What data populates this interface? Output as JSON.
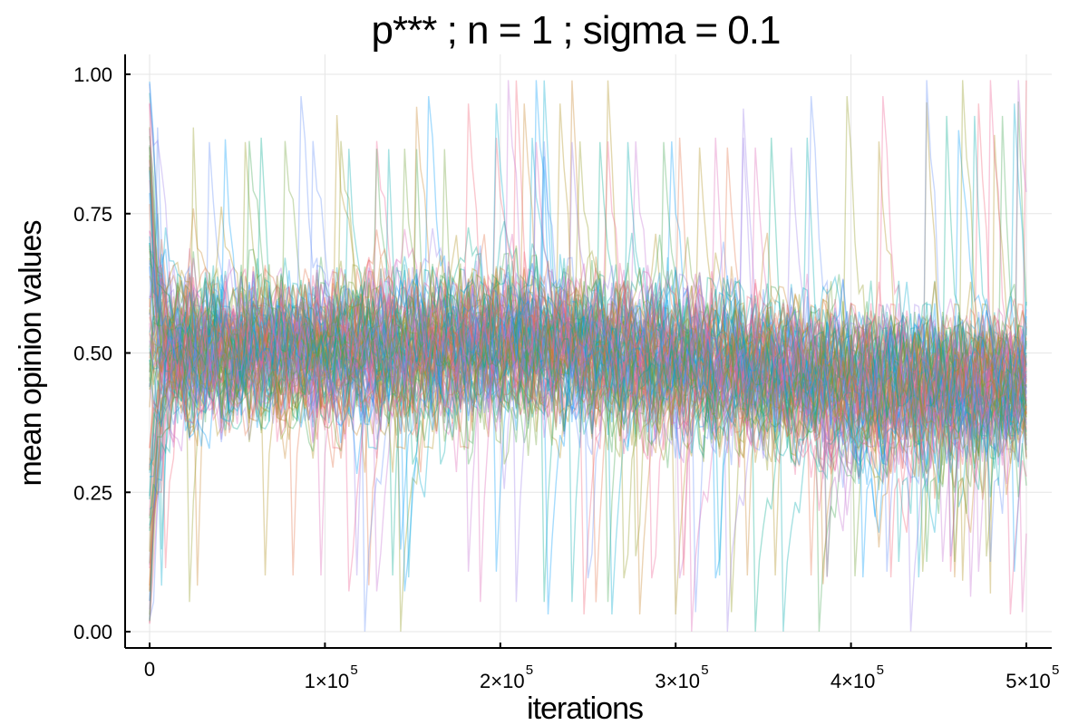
{
  "chart_data": {
    "type": "line",
    "title": "p***  ; n = 1 ; sigma = 0.1",
    "xlabel": "iterations",
    "ylabel": "mean opinion values",
    "xlim": [
      0,
      500000
    ],
    "ylim": [
      0,
      1
    ],
    "grid": true,
    "legend": "none",
    "x_ticks": [
      {
        "value": 0,
        "label": "0",
        "exp": ""
      },
      {
        "value": 100000,
        "label": "1×10",
        "exp": "5"
      },
      {
        "value": 200000,
        "label": "2×10",
        "exp": "5"
      },
      {
        "value": 300000,
        "label": "3×10",
        "exp": "5"
      },
      {
        "value": 400000,
        "label": "4×10",
        "exp": "5"
      },
      {
        "value": 500000,
        "label": "5×10",
        "exp": "5"
      }
    ],
    "y_ticks": [
      {
        "value": 0.0,
        "label": "0.00"
      },
      {
        "value": 0.25,
        "label": "0.25"
      },
      {
        "value": 0.5,
        "label": "0.50"
      },
      {
        "value": 0.75,
        "label": "0.75"
      },
      {
        "value": 1.0,
        "label": "1.00"
      }
    ],
    "series_summary": {
      "count_approx": 100,
      "start_spread": [
        0.0,
        1.0
      ],
      "band_center": 0.5,
      "band_lower": [
        [
          0,
          0.3
        ],
        [
          200000,
          0.3
        ],
        [
          300000,
          0.27
        ],
        [
          400000,
          0.22
        ],
        [
          500000,
          0.22
        ]
      ],
      "band_upper": [
        [
          0,
          0.7
        ],
        [
          200000,
          0.72
        ],
        [
          300000,
          0.7
        ],
        [
          400000,
          0.66
        ],
        [
          500000,
          0.66
        ]
      ],
      "outlier_range": [
        0.0,
        1.0
      ]
    },
    "series_colors": [
      "#009af9",
      "#e26f46",
      "#3da44d",
      "#c271d2",
      "#ac8d18",
      "#00a9ad",
      "#ed5e93",
      "#c68225",
      "#00a98d",
      "#8e971d",
      "#00a9cd",
      "#9b7fe9",
      "#618df6",
      "#f05f73",
      "#dd64b5",
      "#6b9e32"
    ]
  }
}
